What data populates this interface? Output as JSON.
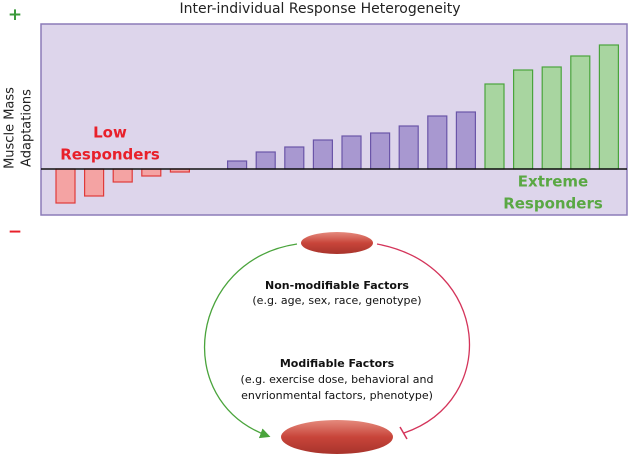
{
  "chart_data": {
    "type": "bar",
    "title": "Inter-individual Response Heterogeneity",
    "y_label": [
      "Muscle Mass",
      "Adaptations"
    ],
    "plus_label": "+",
    "minus_label": "−",
    "annotations": [
      {
        "lines": [
          "Low",
          "Responders"
        ],
        "color": "#e8202a"
      },
      {
        "lines": [
          "Extreme",
          "Responders"
        ],
        "color": "#5aa844"
      }
    ],
    "categories": [
      null,
      null,
      null,
      null,
      null,
      null,
      null,
      null,
      null,
      null,
      null,
      null,
      null,
      null,
      null,
      null,
      null,
      null,
      null,
      null
    ],
    "values": [
      -34,
      -27,
      -13,
      -7,
      -3,
      0,
      8,
      17,
      22,
      29,
      33,
      36,
      43,
      53,
      57,
      85,
      99,
      102,
      113,
      124
    ],
    "colors": [
      "#f4a3a3",
      "#f4a3a3",
      "#f4a3a3",
      "#f4a3a3",
      "#f4a3a3",
      "#f4a3a3",
      "#a898d0",
      "#a898d0",
      "#a898d0",
      "#a898d0",
      "#a898d0",
      "#a898d0",
      "#a898d0",
      "#a898d0",
      "#a898d0",
      "#a8d5a0",
      "#a8d5a0",
      "#a8d5a0",
      "#a8d5a0",
      "#a8d5a0"
    ],
    "ylim": [
      -46,
      145
    ]
  },
  "diagram": {
    "non_modifiable": {
      "title": "Non-modifiable Factors",
      "detail": "(e.g. age, sex, race, genotype)"
    },
    "modifiable": {
      "title": "Modifiable Factors",
      "lines": [
        "(e.g. exercise dose, behavioral and",
        "envrionmental factors, phenotype)"
      ]
    }
  }
}
